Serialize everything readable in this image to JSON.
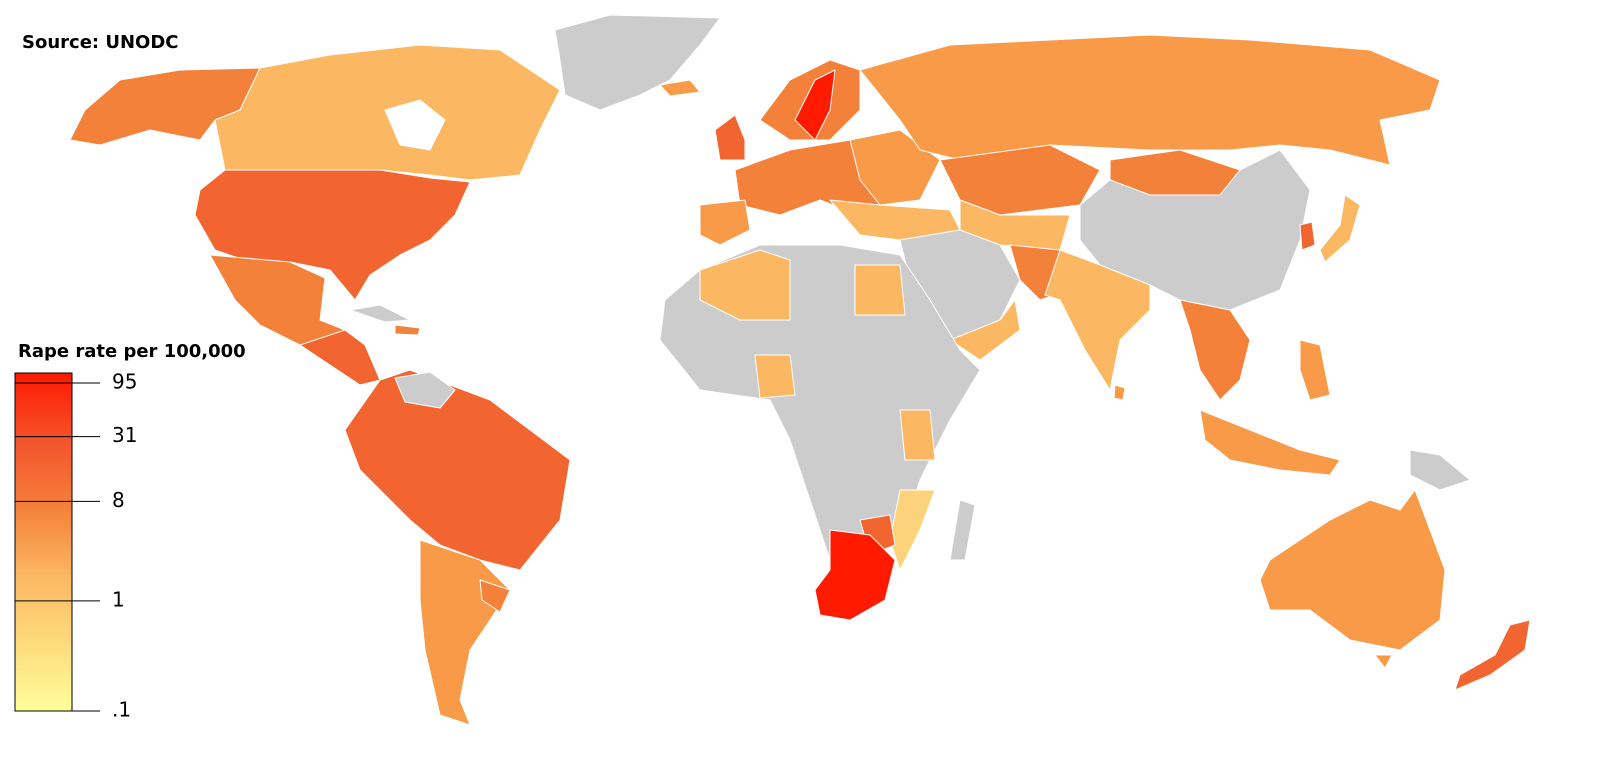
{
  "source": "Source: UNODC",
  "legend": {
    "title": "Rape rate per 100,000",
    "scale": "log",
    "ticks": [
      95,
      31,
      8,
      1,
      {
        "value": 0.1,
        "label": ".1"
      }
    ]
  }
}
